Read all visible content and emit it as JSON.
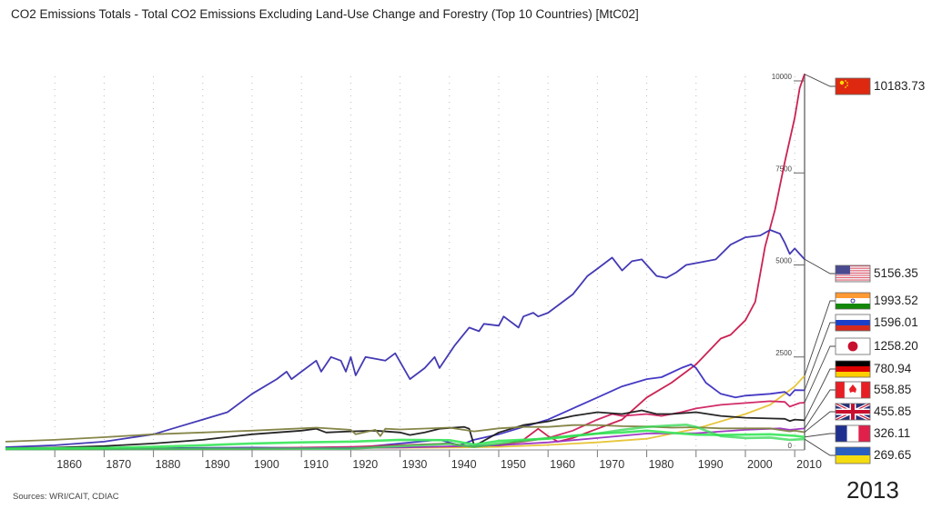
{
  "chart_data": {
    "type": "line",
    "title": "CO2 Emissions Totals - Total CO2 Emissions Excluding Land-Use Change and Forestry (Top 10 Countries) [MtC02]",
    "source": "Sources: WRI/CAIT, CDIAC",
    "current_year": "2013",
    "xlabel": "",
    "ylabel": "",
    "xlim": [
      1850,
      2012
    ],
    "ylim": [
      0,
      10500
    ],
    "x_ticks": [
      "1860",
      "1870",
      "1880",
      "1890",
      "1900",
      "1910",
      "1920",
      "1930",
      "1940",
      "1950",
      "1960",
      "1970",
      "1980",
      "1990",
      "2000",
      "2010"
    ],
    "y_ticks": [
      "0",
      "2500",
      "5000",
      "7500",
      "10000"
    ],
    "grid": "vertical dotted",
    "legend": "right",
    "series": [
      {
        "name": "China",
        "flag": "china",
        "color": "#c8174a",
        "final_value": "10183.73",
        "points": [
          [
            1850,
            0
          ],
          [
            1900,
            10
          ],
          [
            1930,
            40
          ],
          [
            1950,
            80
          ],
          [
            1955,
            250
          ],
          [
            1958,
            550
          ],
          [
            1960,
            350
          ],
          [
            1962,
            200
          ],
          [
            1965,
            300
          ],
          [
            1970,
            550
          ],
          [
            1975,
            800
          ],
          [
            1980,
            1400
          ],
          [
            1985,
            1800
          ],
          [
            1990,
            2300
          ],
          [
            1995,
            3000
          ],
          [
            1997,
            3100
          ],
          [
            2000,
            3500
          ],
          [
            2002,
            4000
          ],
          [
            2004,
            5500
          ],
          [
            2006,
            6500
          ],
          [
            2008,
            7800
          ],
          [
            2010,
            9000
          ],
          [
            2011,
            9800
          ],
          [
            2012,
            10183.73
          ]
        ]
      },
      {
        "name": "United States",
        "flag": "usa",
        "color": "#3a2fb0",
        "final_value": "5156.35",
        "points": [
          [
            1850,
            50
          ],
          [
            1860,
            100
          ],
          [
            1870,
            200
          ],
          [
            1880,
            400
          ],
          [
            1885,
            600
          ],
          [
            1890,
            800
          ],
          [
            1895,
            1000
          ],
          [
            1900,
            1500
          ],
          [
            1905,
            1900
          ],
          [
            1907,
            2100
          ],
          [
            1908,
            1900
          ],
          [
            1910,
            2100
          ],
          [
            1913,
            2400
          ],
          [
            1914,
            2100
          ],
          [
            1916,
            2500
          ],
          [
            1918,
            2400
          ],
          [
            1919,
            2100
          ],
          [
            1920,
            2500
          ],
          [
            1921,
            2000
          ],
          [
            1923,
            2500
          ],
          [
            1925,
            2450
          ],
          [
            1927,
            2400
          ],
          [
            1929,
            2600
          ],
          [
            1932,
            1900
          ],
          [
            1935,
            2200
          ],
          [
            1937,
            2500
          ],
          [
            1938,
            2200
          ],
          [
            1941,
            2800
          ],
          [
            1944,
            3300
          ],
          [
            1946,
            3200
          ],
          [
            1947,
            3400
          ],
          [
            1950,
            3350
          ],
          [
            1951,
            3600
          ],
          [
            1954,
            3300
          ],
          [
            1955,
            3600
          ],
          [
            1957,
            3700
          ],
          [
            1958,
            3600
          ],
          [
            1960,
            3700
          ],
          [
            1963,
            4000
          ],
          [
            1965,
            4200
          ],
          [
            1968,
            4700
          ],
          [
            1970,
            4900
          ],
          [
            1973,
            5200
          ],
          [
            1975,
            4850
          ],
          [
            1977,
            5100
          ],
          [
            1979,
            5150
          ],
          [
            1982,
            4700
          ],
          [
            1984,
            4650
          ],
          [
            1986,
            4800
          ],
          [
            1988,
            5000
          ],
          [
            1990,
            5050
          ],
          [
            1994,
            5150
          ],
          [
            1997,
            5550
          ],
          [
            2000,
            5750
          ],
          [
            2003,
            5800
          ],
          [
            2005,
            5950
          ],
          [
            2007,
            5850
          ],
          [
            2008,
            5600
          ],
          [
            2009,
            5300
          ],
          [
            2010,
            5450
          ],
          [
            2011,
            5300
          ],
          [
            2012,
            5156.35
          ]
        ]
      },
      {
        "name": "India",
        "flag": "india",
        "color": "#e6c333",
        "final_value": "1993.52",
        "points": [
          [
            1850,
            0
          ],
          [
            1900,
            20
          ],
          [
            1940,
            40
          ],
          [
            1950,
            60
          ],
          [
            1960,
            110
          ],
          [
            1970,
            180
          ],
          [
            1980,
            280
          ],
          [
            1990,
            550
          ],
          [
            2000,
            950
          ],
          [
            2005,
            1200
          ],
          [
            2010,
            1700
          ],
          [
            2012,
            1993.52
          ]
        ]
      },
      {
        "name": "Russia",
        "flag": "russia",
        "color": "#3b2fc0",
        "final_value": "1596.01",
        "points": [
          [
            1850,
            0
          ],
          [
            1900,
            40
          ],
          [
            1920,
            20
          ],
          [
            1930,
            150
          ],
          [
            1938,
            250
          ],
          [
            1942,
            100
          ],
          [
            1945,
            250
          ],
          [
            1950,
            400
          ],
          [
            1955,
            600
          ],
          [
            1960,
            800
          ],
          [
            1965,
            1100
          ],
          [
            1970,
            1400
          ],
          [
            1975,
            1700
          ],
          [
            1980,
            1900
          ],
          [
            1983,
            1950
          ],
          [
            1987,
            2200
          ],
          [
            1989,
            2300
          ],
          [
            1990,
            2200
          ],
          [
            1992,
            1800
          ],
          [
            1995,
            1500
          ],
          [
            1998,
            1400
          ],
          [
            2000,
            1450
          ],
          [
            2005,
            1500
          ],
          [
            2008,
            1550
          ],
          [
            2009,
            1450
          ],
          [
            2010,
            1600
          ],
          [
            2012,
            1596.01
          ]
        ]
      },
      {
        "name": "Japan",
        "flag": "japan",
        "color": "#d02060",
        "final_value": "1258.20",
        "points": [
          [
            1850,
            0
          ],
          [
            1900,
            20
          ],
          [
            1920,
            60
          ],
          [
            1940,
            150
          ],
          [
            1945,
            60
          ],
          [
            1950,
            120
          ],
          [
            1955,
            200
          ],
          [
            1960,
            300
          ],
          [
            1965,
            500
          ],
          [
            1970,
            800
          ],
          [
            1973,
            950
          ],
          [
            1975,
            900
          ],
          [
            1980,
            950
          ],
          [
            1983,
            900
          ],
          [
            1987,
            1000
          ],
          [
            1990,
            1100
          ],
          [
            1995,
            1200
          ],
          [
            2000,
            1250
          ],
          [
            2005,
            1300
          ],
          [
            2008,
            1280
          ],
          [
            2009,
            1150
          ],
          [
            2011,
            1250
          ],
          [
            2012,
            1258.2
          ]
        ]
      },
      {
        "name": "Germany",
        "flag": "germany",
        "color": "#1a1a1a",
        "final_value": "780.94",
        "points": [
          [
            1850,
            20
          ],
          [
            1860,
            40
          ],
          [
            1870,
            80
          ],
          [
            1880,
            150
          ],
          [
            1890,
            250
          ],
          [
            1900,
            400
          ],
          [
            1905,
            450
          ],
          [
            1910,
            500
          ],
          [
            1913,
            550
          ],
          [
            1915,
            450
          ],
          [
            1920,
            480
          ],
          [
            1925,
            500
          ],
          [
            1930,
            450
          ],
          [
            1932,
            380
          ],
          [
            1935,
            450
          ],
          [
            1938,
            550
          ],
          [
            1943,
            600
          ],
          [
            1944,
            550
          ],
          [
            1945,
            100
          ],
          [
            1946,
            150
          ],
          [
            1950,
            450
          ],
          [
            1955,
            650
          ],
          [
            1960,
            750
          ],
          [
            1965,
            900
          ],
          [
            1970,
            1000
          ],
          [
            1975,
            950
          ],
          [
            1979,
            1050
          ],
          [
            1982,
            950
          ],
          [
            1985,
            950
          ],
          [
            1990,
            1000
          ],
          [
            1995,
            900
          ],
          [
            2000,
            850
          ],
          [
            2005,
            830
          ],
          [
            2008,
            820
          ],
          [
            2009,
            760
          ],
          [
            2010,
            800
          ],
          [
            2012,
            780.94
          ]
        ]
      },
      {
        "name": "Canada",
        "flag": "canada",
        "color": "#9b30c0",
        "final_value": "558.85",
        "points": [
          [
            1850,
            0
          ],
          [
            1900,
            20
          ],
          [
            1930,
            40
          ],
          [
            1950,
            100
          ],
          [
            1960,
            180
          ],
          [
            1970,
            300
          ],
          [
            1980,
            420
          ],
          [
            1990,
            430
          ],
          [
            2000,
            520
          ],
          [
            2007,
            560
          ],
          [
            2009,
            520
          ],
          [
            2012,
            558.85
          ]
        ]
      },
      {
        "name": "United Kingdom",
        "flag": "uk",
        "color": "#808040",
        "final_value": "455.85",
        "points": [
          [
            1850,
            200
          ],
          [
            1860,
            250
          ],
          [
            1870,
            320
          ],
          [
            1880,
            400
          ],
          [
            1890,
            450
          ],
          [
            1900,
            500
          ],
          [
            1910,
            560
          ],
          [
            1913,
            580
          ],
          [
            1920,
            520
          ],
          [
            1921,
            400
          ],
          [
            1925,
            520
          ],
          [
            1926,
            350
          ],
          [
            1927,
            550
          ],
          [
            1930,
            530
          ],
          [
            1940,
            580
          ],
          [
            1945,
            480
          ],
          [
            1950,
            560
          ],
          [
            1955,
            600
          ],
          [
            1960,
            600
          ],
          [
            1965,
            650
          ],
          [
            1970,
            650
          ],
          [
            1975,
            620
          ],
          [
            1980,
            610
          ],
          [
            1985,
            580
          ],
          [
            1990,
            590
          ],
          [
            1995,
            560
          ],
          [
            2000,
            560
          ],
          [
            2005,
            560
          ],
          [
            2009,
            480
          ],
          [
            2010,
            500
          ],
          [
            2012,
            455.85
          ]
        ]
      },
      {
        "name": "France",
        "flag": "france",
        "color": "#40e860",
        "final_value": "326.11",
        "points": [
          [
            1850,
            10
          ],
          [
            1870,
            30
          ],
          [
            1880,
            60
          ],
          [
            1890,
            100
          ],
          [
            1900,
            150
          ],
          [
            1910,
            180
          ],
          [
            1920,
            200
          ],
          [
            1930,
            250
          ],
          [
            1940,
            240
          ],
          [
            1945,
            120
          ],
          [
            1950,
            220
          ],
          [
            1960,
            280
          ],
          [
            1965,
            350
          ],
          [
            1970,
            420
          ],
          [
            1975,
            450
          ],
          [
            1980,
            500
          ],
          [
            1985,
            440
          ],
          [
            1990,
            390
          ],
          [
            1995,
            380
          ],
          [
            2000,
            390
          ],
          [
            2005,
            400
          ],
          [
            2010,
            360
          ],
          [
            2012,
            326.11
          ]
        ]
      },
      {
        "name": "Ukraine",
        "flag": "ukraine",
        "color": "#30d850",
        "final_value": "269.65",
        "points": [
          [
            1850,
            0
          ],
          [
            1920,
            10
          ],
          [
            1930,
            80
          ],
          [
            1940,
            140
          ],
          [
            1945,
            60
          ],
          [
            1950,
            150
          ],
          [
            1960,
            300
          ],
          [
            1970,
            420
          ],
          [
            1975,
            520
          ],
          [
            1980,
            600
          ],
          [
            1985,
            640
          ],
          [
            1988,
            660
          ],
          [
            1990,
            600
          ],
          [
            1993,
            450
          ],
          [
            1995,
            350
          ],
          [
            2000,
            300
          ],
          [
            2005,
            310
          ],
          [
            2009,
            250
          ],
          [
            2012,
            269.65
          ]
        ]
      }
    ]
  }
}
